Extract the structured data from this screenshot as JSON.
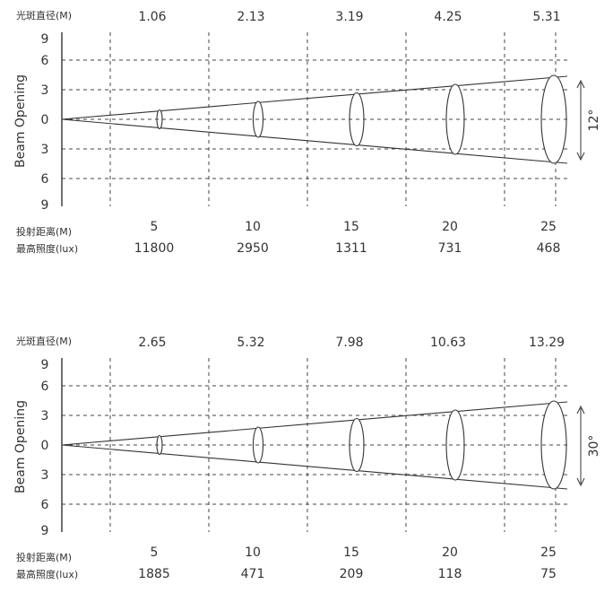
{
  "labels": {
    "diameter": "光斑直径(M)",
    "distance": "投射距离(M)",
    "illuminance": "最高照度(lux)",
    "beam_opening": "Beam Opening"
  },
  "chart_data": [
    {
      "type": "beam-diagram",
      "beam_angle_label": "12°",
      "beam_angle_deg": 12,
      "ytick_labels": [
        "9",
        "6",
        "3",
        "0",
        "3",
        "6",
        "9"
      ],
      "distance": [
        "5",
        "10",
        "15",
        "20",
        "25"
      ],
      "spot_diameter": [
        "1.06",
        "2.13",
        "3.19",
        "4.25",
        "5.31"
      ],
      "max_illuminance": [
        "11800",
        "2950",
        "1311",
        "731",
        "468"
      ],
      "grid": true
    },
    {
      "type": "beam-diagram",
      "beam_angle_label": "30°",
      "beam_angle_deg": 30,
      "ytick_labels": [
        "9",
        "6",
        "3",
        "0",
        "3",
        "6",
        "9"
      ],
      "distance": [
        "5",
        "10",
        "15",
        "20",
        "25"
      ],
      "spot_diameter": [
        "2.65",
        "5.32",
        "7.98",
        "10.63",
        "13.29"
      ],
      "max_illuminance": [
        "1885",
        "471",
        "209",
        "118",
        "75"
      ],
      "grid": true
    }
  ]
}
